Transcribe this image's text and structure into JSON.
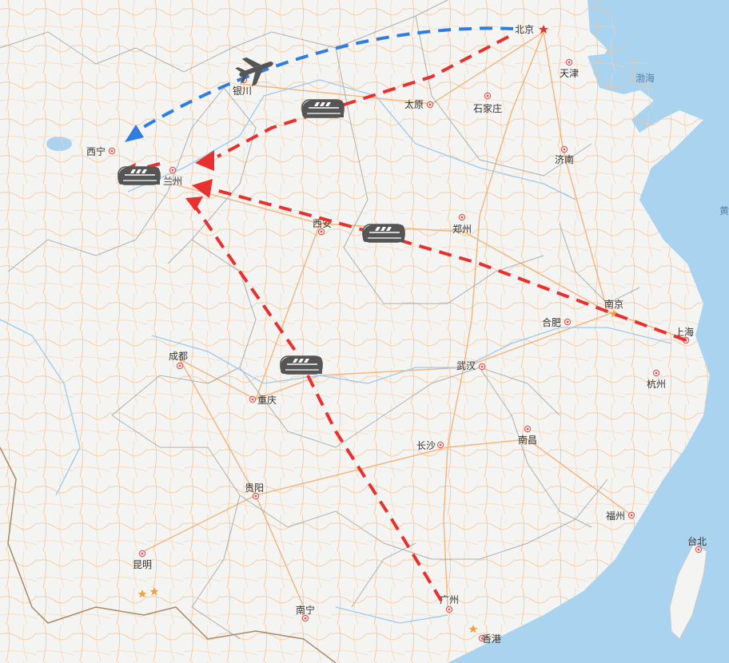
{
  "map": {
    "cities": [
      {
        "id": "beijing",
        "name": "北京"
      },
      {
        "id": "tianjin",
        "name": "天津"
      },
      {
        "id": "yinchuan",
        "name": "银川"
      },
      {
        "id": "taiyuan",
        "name": "太原"
      },
      {
        "id": "shijiazhuang",
        "name": "石家庄"
      },
      {
        "id": "jinan",
        "name": "济南"
      },
      {
        "id": "xining",
        "name": "西宁"
      },
      {
        "id": "lanzhou",
        "name": "兰州"
      },
      {
        "id": "xian",
        "name": "西安"
      },
      {
        "id": "zhengzhou",
        "name": "郑州"
      },
      {
        "id": "nanjing",
        "name": "南京"
      },
      {
        "id": "hefei",
        "name": "合肥"
      },
      {
        "id": "shanghai",
        "name": "上海"
      },
      {
        "id": "hangzhou",
        "name": "杭州"
      },
      {
        "id": "wuhan",
        "name": "武汉"
      },
      {
        "id": "chengdu",
        "name": "成都"
      },
      {
        "id": "chongqing",
        "name": "重庆"
      },
      {
        "id": "changsha",
        "name": "长沙"
      },
      {
        "id": "nanchang",
        "name": "南昌"
      },
      {
        "id": "guiyang",
        "name": "贵阳"
      },
      {
        "id": "fuzhou",
        "name": "福州"
      },
      {
        "id": "taibei",
        "name": "台北"
      },
      {
        "id": "kunming",
        "name": "昆明"
      },
      {
        "id": "nanning",
        "name": "南宁"
      },
      {
        "id": "guangzhou",
        "name": "广州"
      },
      {
        "id": "xianggang",
        "name": "香港"
      }
    ],
    "seas": [
      {
        "id": "bohai",
        "name": "渤海"
      },
      {
        "id": "huanghai",
        "name": "黄"
      }
    ],
    "routes": [
      {
        "id": "flight-beijing-xining",
        "from": "北京",
        "to": "西宁",
        "mode": "plane",
        "color": "#2f7de1"
      },
      {
        "id": "train-beijing-lanzhou",
        "from": "北京",
        "to": "兰州",
        "mode": "train",
        "color": "#e8302f"
      },
      {
        "id": "train-shanghai-lanzhou",
        "from": "上海",
        "to": "兰州",
        "mode": "train",
        "color": "#e8302f"
      },
      {
        "id": "train-guangzhou-lanzhou",
        "from": "广州",
        "to": "兰州",
        "mode": "train",
        "color": "#e8302f"
      }
    ],
    "colors": {
      "land": "#f4f4f2",
      "sea": "#aad3f0",
      "roads": "#f7b67a",
      "borders": "#a6a6a6",
      "route_red": "#e8302f",
      "route_blue": "#2f7de1",
      "icons": "#555555"
    }
  }
}
